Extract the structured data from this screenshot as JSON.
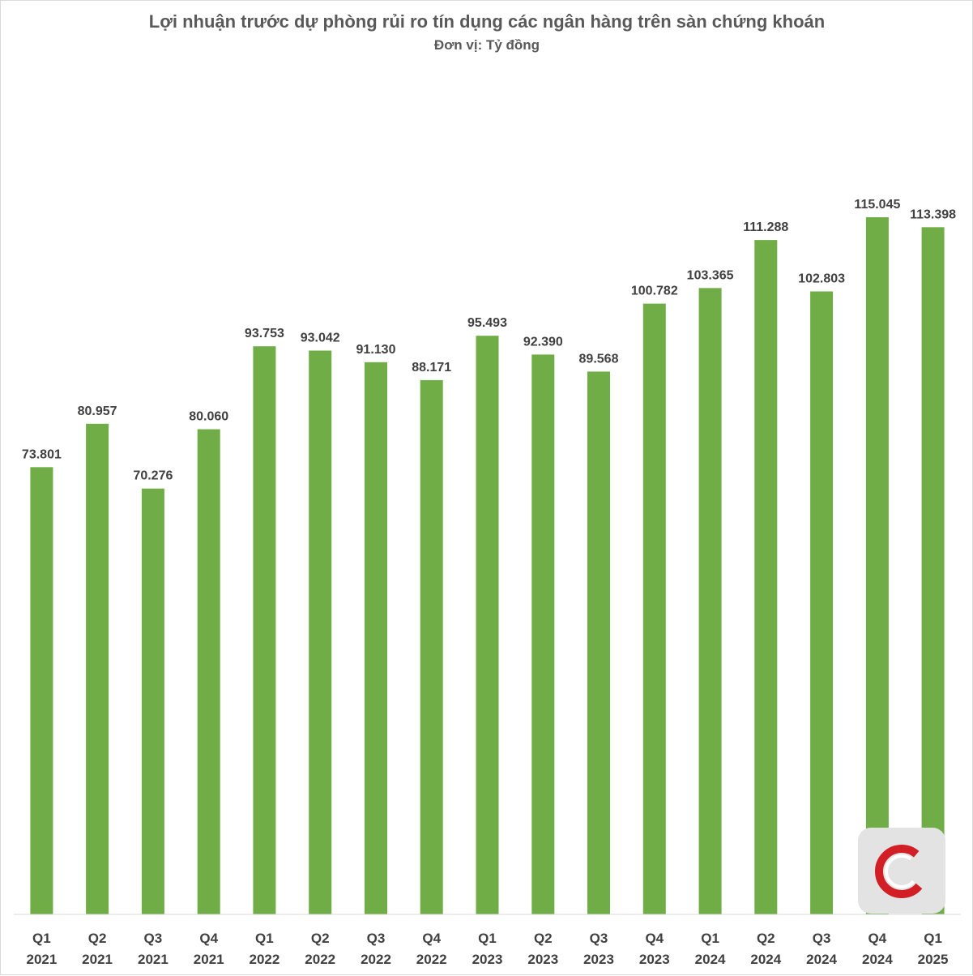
{
  "chart_data": {
    "type": "bar",
    "title": "Lợi nhuận trước dự phòng rủi ro tín dụng các ngân hàng trên sàn chứng khoán",
    "subtitle": "Đơn vị: Tỷ đồng",
    "xlabel": "",
    "ylabel": "",
    "categories": [
      [
        "Q1",
        "2021"
      ],
      [
        "Q2",
        "2021"
      ],
      [
        "Q3",
        "2021"
      ],
      [
        "Q4",
        "2021"
      ],
      [
        "Q1",
        "2022"
      ],
      [
        "Q2",
        "2022"
      ],
      [
        "Q3",
        "2022"
      ],
      [
        "Q4",
        "2022"
      ],
      [
        "Q1",
        "2023"
      ],
      [
        "Q2",
        "2023"
      ],
      [
        "Q3",
        "2023"
      ],
      [
        "Q4",
        "2023"
      ],
      [
        "Q1",
        "2024"
      ],
      [
        "Q2",
        "2024"
      ],
      [
        "Q3",
        "2024"
      ],
      [
        "Q4",
        "2024"
      ],
      [
        "Q1",
        "2025"
      ]
    ],
    "values": [
      73801,
      80957,
      70276,
      80060,
      93753,
      93042,
      91130,
      88171,
      95493,
      92390,
      89568,
      100782,
      103365,
      111288,
      102803,
      115045,
      113398
    ],
    "value_labels": [
      "73.801",
      "80.957",
      "70.276",
      "80.060",
      "93.753",
      "93.042",
      "91.130",
      "88.171",
      "95.493",
      "92.390",
      "89.568",
      "100.782",
      "103.365",
      "111.288",
      "102.803",
      "115.045",
      "113.398"
    ],
    "ylim": [
      0,
      128000
    ],
    "grid": false,
    "legend": "none",
    "colors": {
      "bar": "#70ad47",
      "axis": "#d9d9d9",
      "text": "#404040",
      "title": "#595959",
      "logo_bg": "#e3e3e3",
      "logo_accent": "#d21f26"
    }
  }
}
